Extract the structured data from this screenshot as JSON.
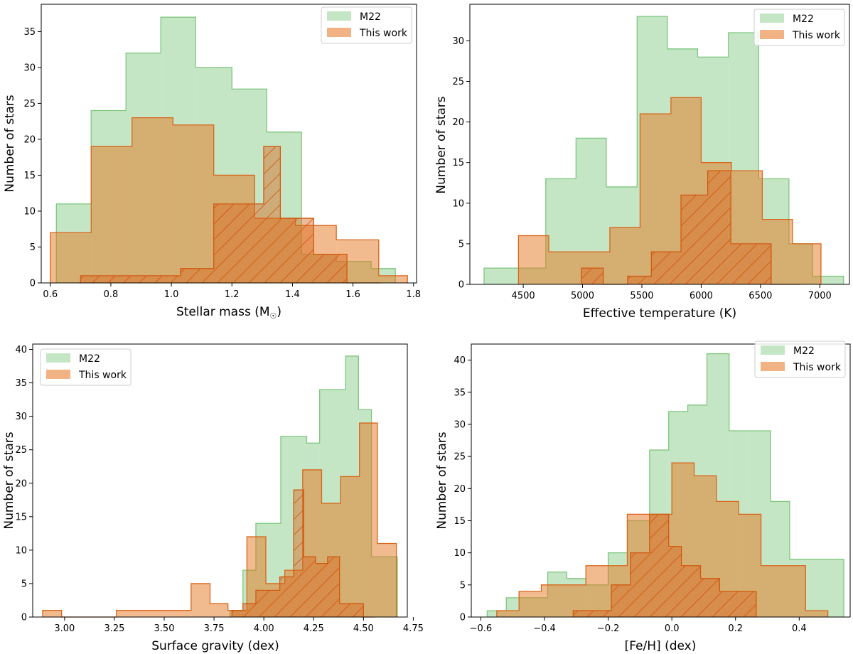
{
  "chart_data": [
    {
      "type": "histogram",
      "xlabel_main": "Stellar mass (M",
      "xlabel_sub": "☉",
      "xlabel_close": ")",
      "ylabel": "Number of stars",
      "xlim": [
        0.57,
        1.81
      ],
      "ylim": [
        0,
        38.8
      ],
      "xticks": [
        0.6,
        0.8,
        1.0,
        1.2,
        1.4,
        1.6,
        1.8
      ],
      "xtick_labels": [
        "0.6",
        "0.8",
        "1.0",
        "1.2",
        "1.4",
        "1.6",
        "1.8"
      ],
      "yticks": [
        0,
        5,
        10,
        15,
        20,
        25,
        30,
        35
      ],
      "ytick_labels": [
        "0",
        "5",
        "10",
        "15",
        "20",
        "25",
        "30",
        "35"
      ],
      "legend": {
        "position": "top-right",
        "entries": [
          "M22",
          "This work"
        ]
      },
      "series": [
        {
          "name": "M22",
          "style": "green",
          "edges": [
            0.62,
            0.735,
            0.85,
            0.965,
            1.08,
            1.2,
            1.315,
            1.43,
            1.545,
            1.66,
            1.74
          ],
          "counts": [
            11,
            24,
            32,
            37,
            30,
            27,
            21,
            4,
            3,
            2
          ]
        },
        {
          "name": "This work",
          "style": "orange",
          "edges": [
            0.6,
            0.735,
            0.87,
            1.005,
            1.14,
            1.275,
            1.41,
            1.545,
            1.685,
            1.78
          ],
          "counts": [
            7,
            19,
            23,
            22,
            15,
            9,
            8,
            6,
            1
          ]
        },
        {
          "name": "This work (hatched)",
          "style": "hatch",
          "edges": [
            0.7,
            0.755,
            0.81,
            0.865,
            0.92,
            0.975,
            1.03,
            1.085,
            1.14,
            1.195,
            1.25,
            1.305,
            1.36,
            1.415,
            1.47,
            1.525,
            1.58,
            1.635,
            1.69
          ],
          "counts": [
            1,
            1,
            1,
            1,
            1,
            1,
            2,
            2,
            11,
            11,
            11,
            19,
            9,
            9,
            4,
            4,
            0,
            0
          ]
        }
      ]
    },
    {
      "type": "histogram",
      "xlabel": "Effective temperature (K)",
      "ylabel": "Number of stars",
      "xlim": [
        4050,
        7250
      ],
      "ylim": [
        0,
        34.5
      ],
      "xticks": [
        4500,
        5000,
        5500,
        6000,
        6500,
        7000
      ],
      "xtick_labels": [
        "4500",
        "5000",
        "5500",
        "6000",
        "6500",
        "7000"
      ],
      "yticks": [
        0,
        5,
        10,
        15,
        20,
        25,
        30
      ],
      "ytick_labels": [
        "0",
        "5",
        "10",
        "15",
        "20",
        "25",
        "30"
      ],
      "legend": {
        "position": "top-right",
        "entries": [
          "M22",
          "This work"
        ]
      },
      "series": [
        {
          "name": "M22",
          "style": "green",
          "edges": [
            4170,
            4430,
            4690,
            4945,
            5200,
            5460,
            5715,
            5970,
            6230,
            6485,
            6740,
            6940,
            7200
          ],
          "counts": [
            2,
            2,
            13,
            18,
            12,
            33,
            29,
            28,
            31,
            13,
            5,
            1
          ]
        },
        {
          "name": "This work",
          "style": "orange",
          "edges": [
            4460,
            4715,
            4975,
            5230,
            5485,
            5745,
            6000,
            6255,
            6515,
            6770,
            7010
          ],
          "counts": [
            6,
            4,
            4,
            7,
            21,
            23,
            15,
            14,
            8,
            5
          ]
        },
        {
          "name": "This work (hatched)",
          "style": "hatch",
          "edges": [
            4990,
            5175,
            5380,
            5580,
            5830,
            6055,
            6250,
            6590,
            6835
          ],
          "counts": [
            2,
            0,
            1,
            4,
            11,
            14,
            5,
            0
          ]
        }
      ]
    },
    {
      "type": "histogram",
      "xlabel": "Surface gravity (dex)",
      "ylabel": "Number of stars",
      "xlim": [
        2.84,
        4.72
      ],
      "ylim": [
        0,
        40.8
      ],
      "xticks": [
        3.0,
        3.25,
        3.5,
        3.75,
        4.0,
        4.25,
        4.5,
        4.75
      ],
      "xtick_labels": [
        "3.00",
        "3.25",
        "3.50",
        "3.75",
        "4.00",
        "4.25",
        "4.50",
        "4.75"
      ],
      "yticks": [
        0,
        5,
        10,
        15,
        20,
        25,
        30,
        35,
        40
      ],
      "ytick_labels": [
        "0",
        "5",
        "10",
        "15",
        "20",
        "25",
        "30",
        "35",
        "40"
      ],
      "legend": {
        "position": "top-left",
        "entries": [
          "M22",
          "This work"
        ]
      },
      "series": [
        {
          "name": "M22",
          "style": "green",
          "edges": [
            3.83,
            3.895,
            3.96,
            4.025,
            4.085,
            4.15,
            4.215,
            4.28,
            4.345,
            4.41,
            4.475,
            4.54,
            4.605,
            4.67
          ],
          "counts": [
            1,
            7,
            14,
            14,
            27,
            27,
            26,
            34,
            34,
            39,
            31,
            9,
            9
          ]
        },
        {
          "name": "This work",
          "style": "orange",
          "edges": [
            2.89,
            2.985,
            3.075,
            3.165,
            3.26,
            3.355,
            3.45,
            3.54,
            3.635,
            3.73,
            3.82,
            3.915,
            4.01,
            4.105,
            4.195,
            4.29,
            4.385,
            4.48,
            4.57,
            4.665
          ],
          "counts": [
            1,
            0,
            0,
            0,
            1,
            1,
            1,
            1,
            5,
            2,
            1,
            12,
            5,
            7,
            22,
            17,
            21,
            29,
            11
          ]
        },
        {
          "name": "This work (hatched)",
          "style": "hatch",
          "edges": [
            3.84,
            3.895,
            3.96,
            4.02,
            4.08,
            4.15,
            4.2,
            4.26,
            4.32,
            4.38,
            4.44,
            4.5,
            4.555
          ],
          "counts": [
            1,
            2,
            4,
            4,
            6,
            19,
            9,
            8,
            9,
            2,
            2,
            0
          ]
        }
      ]
    },
    {
      "type": "histogram",
      "xlabel": "[Fe/H] (dex)",
      "ylabel": "Number of stars",
      "xlim": [
        -0.63,
        0.56
      ],
      "ylim": [
        0,
        42.5
      ],
      "xticks": [
        -0.6,
        -0.4,
        -0.2,
        0.0,
        0.2,
        0.4
      ],
      "xtick_labels": [
        "−0.6",
        "−0.4",
        "−0.2",
        "0.0",
        "0.2",
        "0.4"
      ],
      "yticks": [
        0,
        5,
        10,
        15,
        20,
        25,
        30,
        35,
        40
      ],
      "ytick_labels": [
        "0",
        "5",
        "10",
        "15",
        "20",
        "25",
        "30",
        "35",
        "40"
      ],
      "legend": {
        "position": "top-right",
        "entries": [
          "M22",
          "This work"
        ]
      },
      "series": [
        {
          "name": "M22",
          "style": "green",
          "edges": [
            -0.58,
            -0.52,
            -0.46,
            -0.39,
            -0.33,
            -0.27,
            -0.2,
            -0.14,
            -0.07,
            -0.01,
            0.05,
            0.11,
            0.18,
            0.24,
            0.31,
            0.37,
            0.44,
            0.5,
            0.54
          ],
          "counts": [
            1,
            3,
            3,
            7,
            6,
            5,
            10,
            15,
            26,
            32,
            33,
            41,
            29,
            29,
            18,
            9,
            9,
            9
          ]
        },
        {
          "name": "This work",
          "style": "orange",
          "edges": [
            -0.55,
            -0.48,
            -0.41,
            -0.34,
            -0.27,
            -0.21,
            -0.14,
            -0.07,
            0.0,
            0.07,
            0.14,
            0.21,
            0.28,
            0.35,
            0.42,
            0.49
          ],
          "counts": [
            1,
            4,
            5,
            5,
            8,
            8,
            16,
            16,
            24,
            22,
            18,
            16,
            8,
            8,
            1
          ]
        },
        {
          "name": "This work (hatched)",
          "style": "hatch",
          "edges": [
            -0.31,
            -0.25,
            -0.19,
            -0.13,
            -0.07,
            -0.01,
            0.03,
            0.09,
            0.15,
            0.21,
            0.265
          ],
          "counts": [
            1,
            1,
            5,
            10,
            16,
            11,
            8,
            6,
            4,
            4
          ]
        }
      ]
    }
  ]
}
